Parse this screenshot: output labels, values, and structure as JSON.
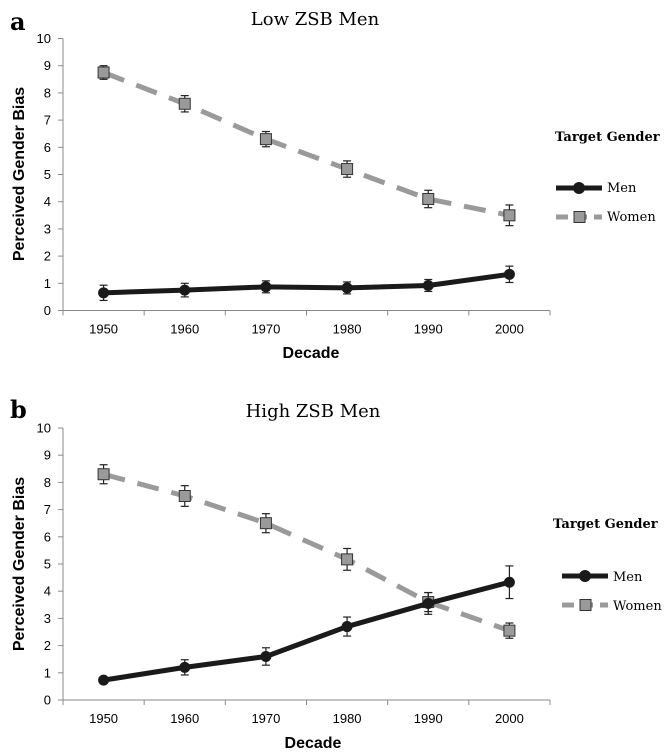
{
  "chart_data": [
    {
      "panel": "a",
      "type": "line",
      "title": "Low ZSB Men",
      "xlabel": "Decade",
      "ylabel": "Perceived Gender Bias",
      "categories": [
        "1950",
        "1960",
        "1970",
        "1980",
        "1990",
        "2000"
      ],
      "ylim": [
        0,
        10
      ],
      "yticks": [
        "0",
        "1",
        "2",
        "3",
        "4",
        "5",
        "6",
        "7",
        "8",
        "9",
        "10"
      ],
      "grid": false,
      "legend_position": "right",
      "legend_title": "Target Gender",
      "series": [
        {
          "name": "Men",
          "values": [
            0.65,
            0.75,
            0.87,
            0.83,
            0.92,
            1.33
          ],
          "errors": [
            0.28,
            0.25,
            0.22,
            0.22,
            0.22,
            0.3
          ],
          "color": "#1a1a1a",
          "style": "solid",
          "marker": "circle"
        },
        {
          "name": "Women",
          "values": [
            8.75,
            7.6,
            6.3,
            5.2,
            4.1,
            3.5
          ],
          "errors": [
            0.25,
            0.3,
            0.28,
            0.3,
            0.32,
            0.38
          ],
          "color": "#9a9a9a",
          "style": "dashed",
          "marker": "square"
        }
      ]
    },
    {
      "panel": "b",
      "type": "line",
      "title": "High ZSB Men",
      "xlabel": "Decade",
      "ylabel": "Perceived Gender Bias",
      "categories": [
        "1950",
        "1960",
        "1970",
        "1980",
        "1990",
        "2000"
      ],
      "ylim": [
        0,
        10
      ],
      "yticks": [
        "0",
        "1",
        "2",
        "3",
        "4",
        "5",
        "6",
        "7",
        "8",
        "9",
        "10"
      ],
      "grid": false,
      "legend_position": "right",
      "legend_title": "Target Gender",
      "series": [
        {
          "name": "Men",
          "values": [
            0.73,
            1.2,
            1.6,
            2.7,
            3.55,
            4.33
          ],
          "errors": [
            0.1,
            0.28,
            0.32,
            0.35,
            0.4,
            0.6
          ],
          "color": "#1a1a1a",
          "style": "solid",
          "marker": "circle"
        },
        {
          "name": "Women",
          "values": [
            8.3,
            7.5,
            6.5,
            5.17,
            3.6,
            2.55
          ],
          "errors": [
            0.35,
            0.38,
            0.35,
            0.4,
            0.35,
            0.28
          ],
          "color": "#9a9a9a",
          "style": "dashed",
          "marker": "square"
        }
      ]
    }
  ]
}
